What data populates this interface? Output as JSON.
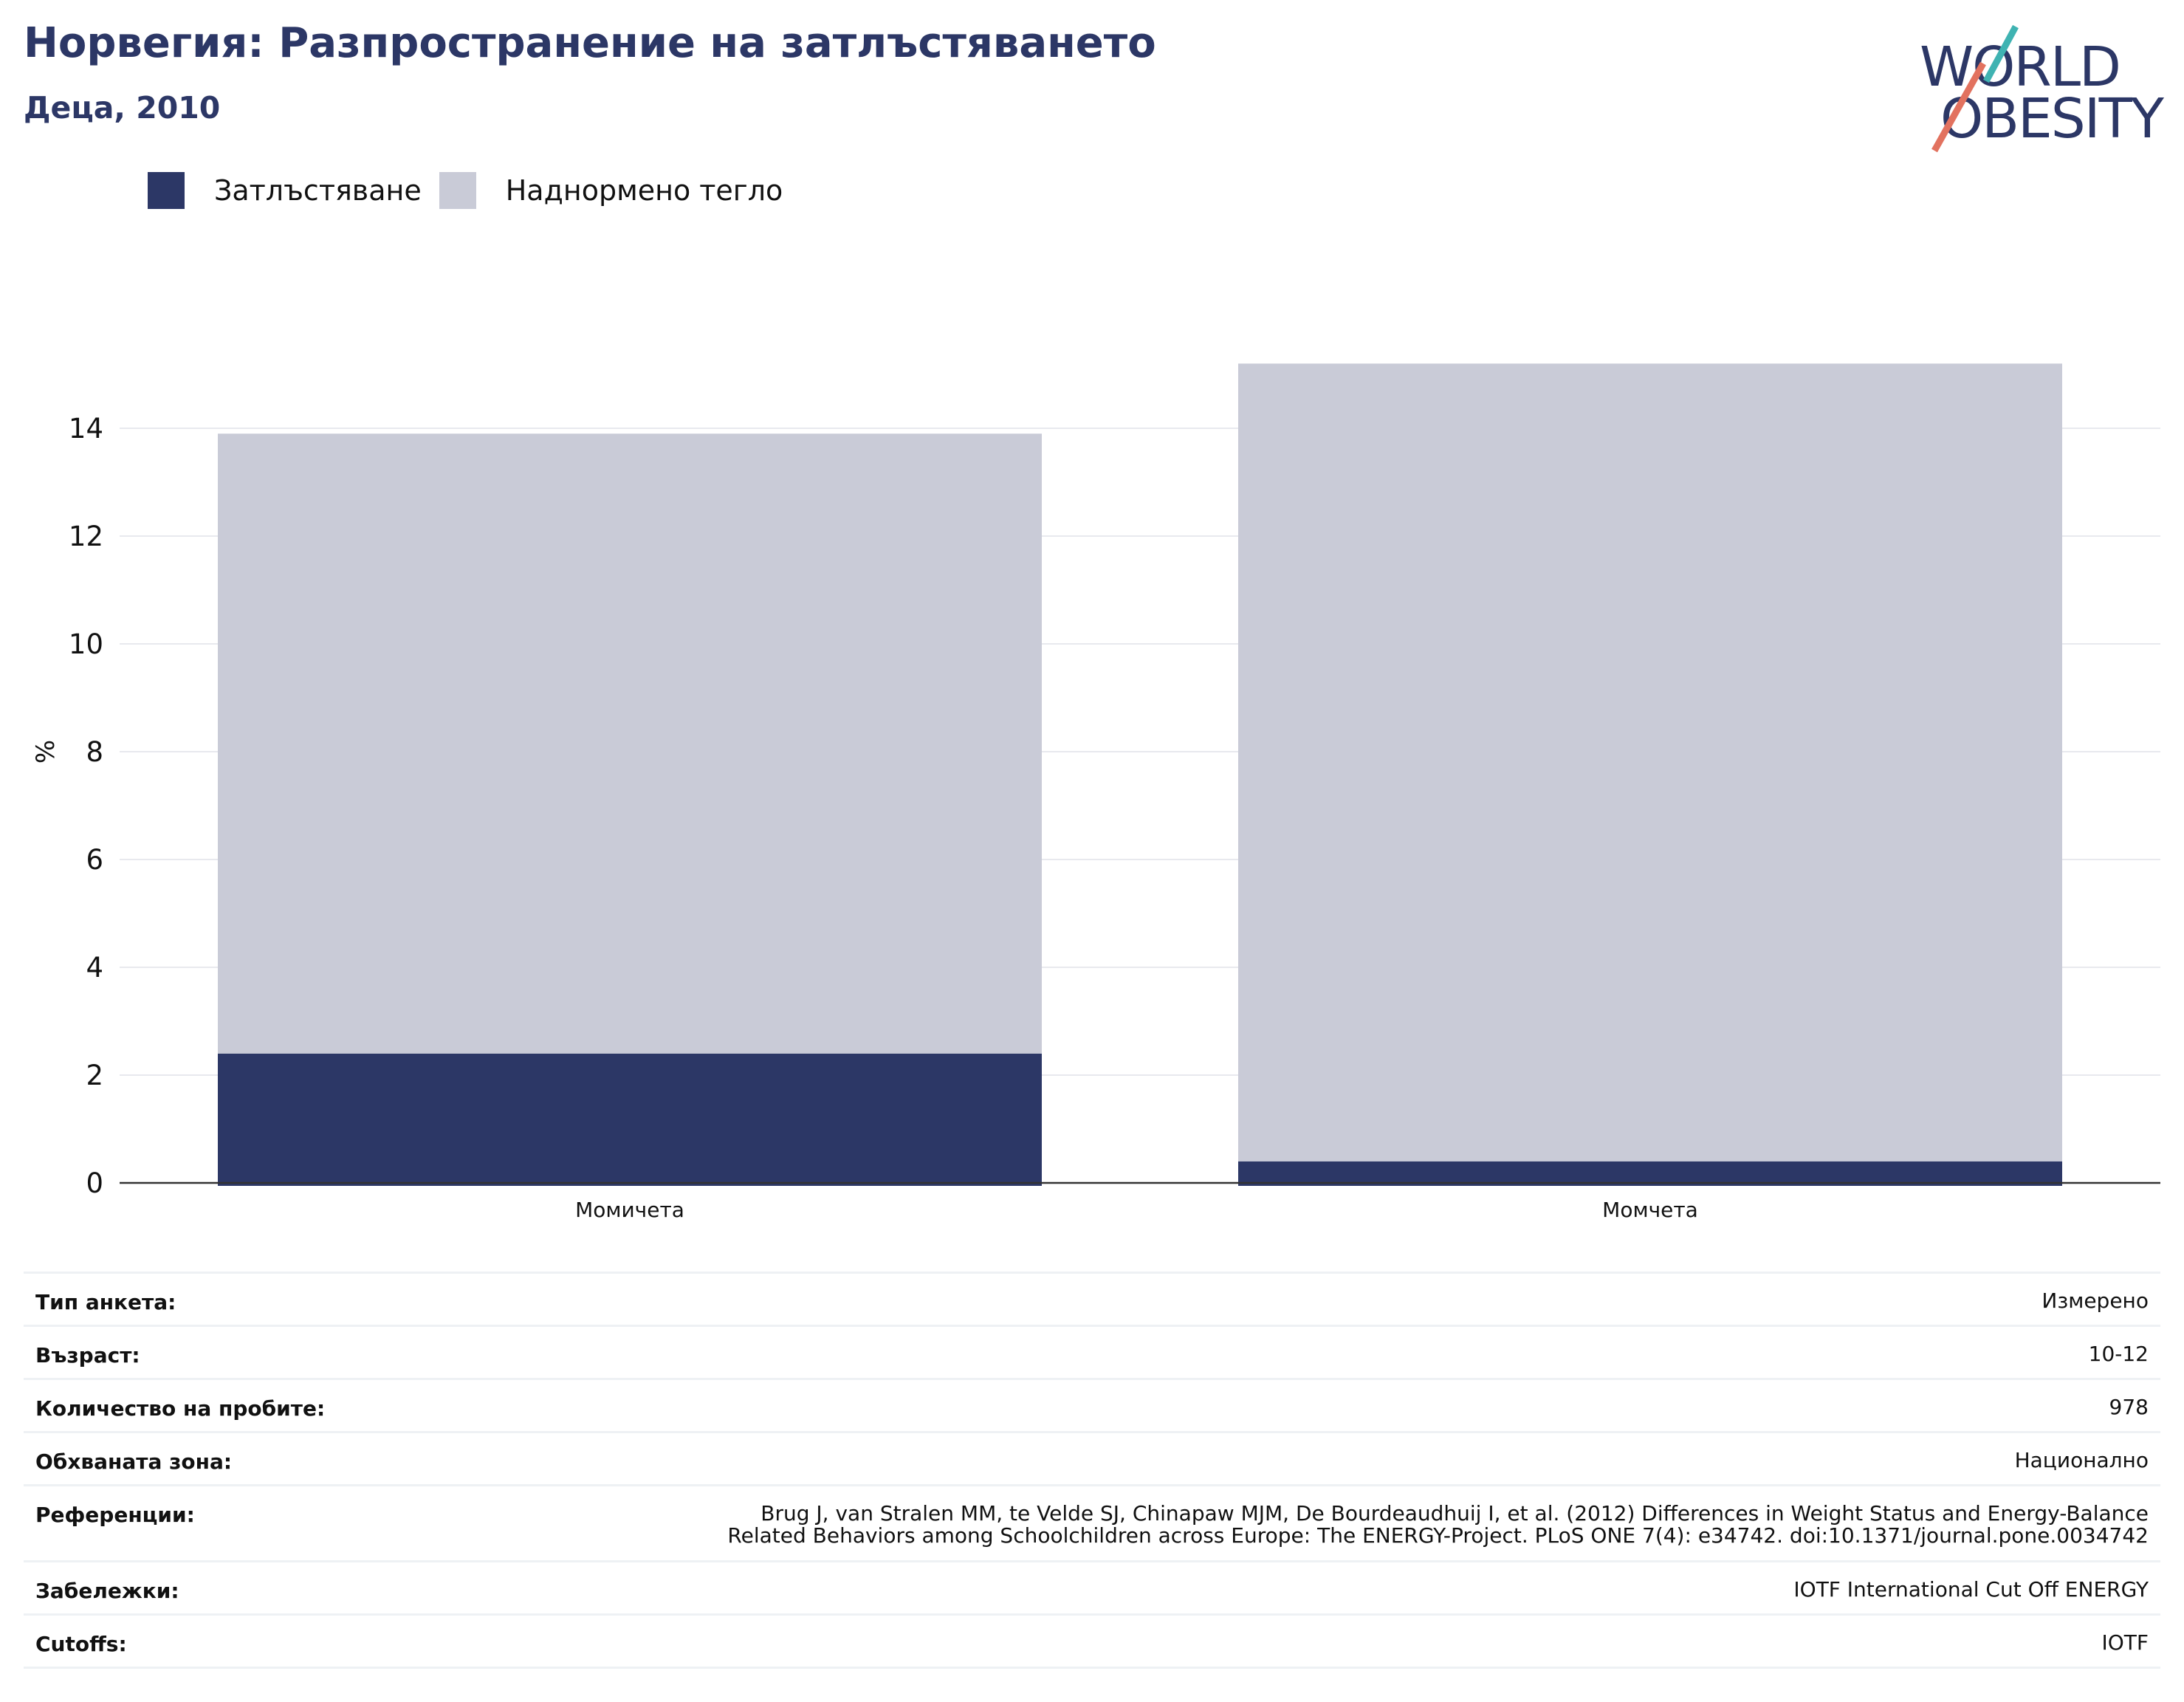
{
  "header": {
    "title": "Норвегия: Разпространение на затлъстяването",
    "subtitle": "Деца, 2010"
  },
  "logo": {
    "line1": "WORLD",
    "line2": "OBESITY",
    "colors": {
      "text": "#2c3766",
      "teal": "#3fb3b2",
      "coral": "#e2725f"
    }
  },
  "legend": [
    {
      "label": "Затлъстяване",
      "color": "#2c3766"
    },
    {
      "label": "Наднормено тегло",
      "color": "#c9cbd7"
    }
  ],
  "chart_data": {
    "type": "bar",
    "stacked": true,
    "categories": [
      "Момичета",
      "Момчета"
    ],
    "series": [
      {
        "name": "Затлъстяване",
        "values": [
          2.4,
          0.4
        ],
        "color": "#2c3766"
      },
      {
        "name": "Наднормено тегло",
        "values": [
          11.5,
          14.8
        ],
        "color": "#c9cbd7"
      }
    ],
    "ylabel": "%",
    "ylim": [
      0,
      15.2
    ],
    "yticks": [
      "0",
      "2",
      "4",
      "6",
      "8",
      "10",
      "12",
      "14"
    ],
    "grid": true,
    "legend_position": "top-left"
  },
  "info": [
    {
      "key": "Тип анкета:",
      "value": "Измерено"
    },
    {
      "key": "Възраст:",
      "value": "10-12"
    },
    {
      "key": "Количество на пробите:",
      "value": "978"
    },
    {
      "key": "Обхваната зона:",
      "value": "Национално"
    },
    {
      "key": "Референции:",
      "value": "Brug J, van Stralen MM, te Velde SJ, Chinapaw MJM, De Bourdeaudhuij I, et al. (2012) Differences in Weight Status and Energy-Balance\nRelated Behaviors among Schoolchildren across Europe: The ENERGY-Project. PLoS ONE 7(4): e34742. doi:10.1371/journal.pone.0034742"
    },
    {
      "key": "Забележки:",
      "value": "IOTF International Cut Off ENERGY"
    },
    {
      "key": "Cutoffs:",
      "value": "IOTF"
    }
  ]
}
